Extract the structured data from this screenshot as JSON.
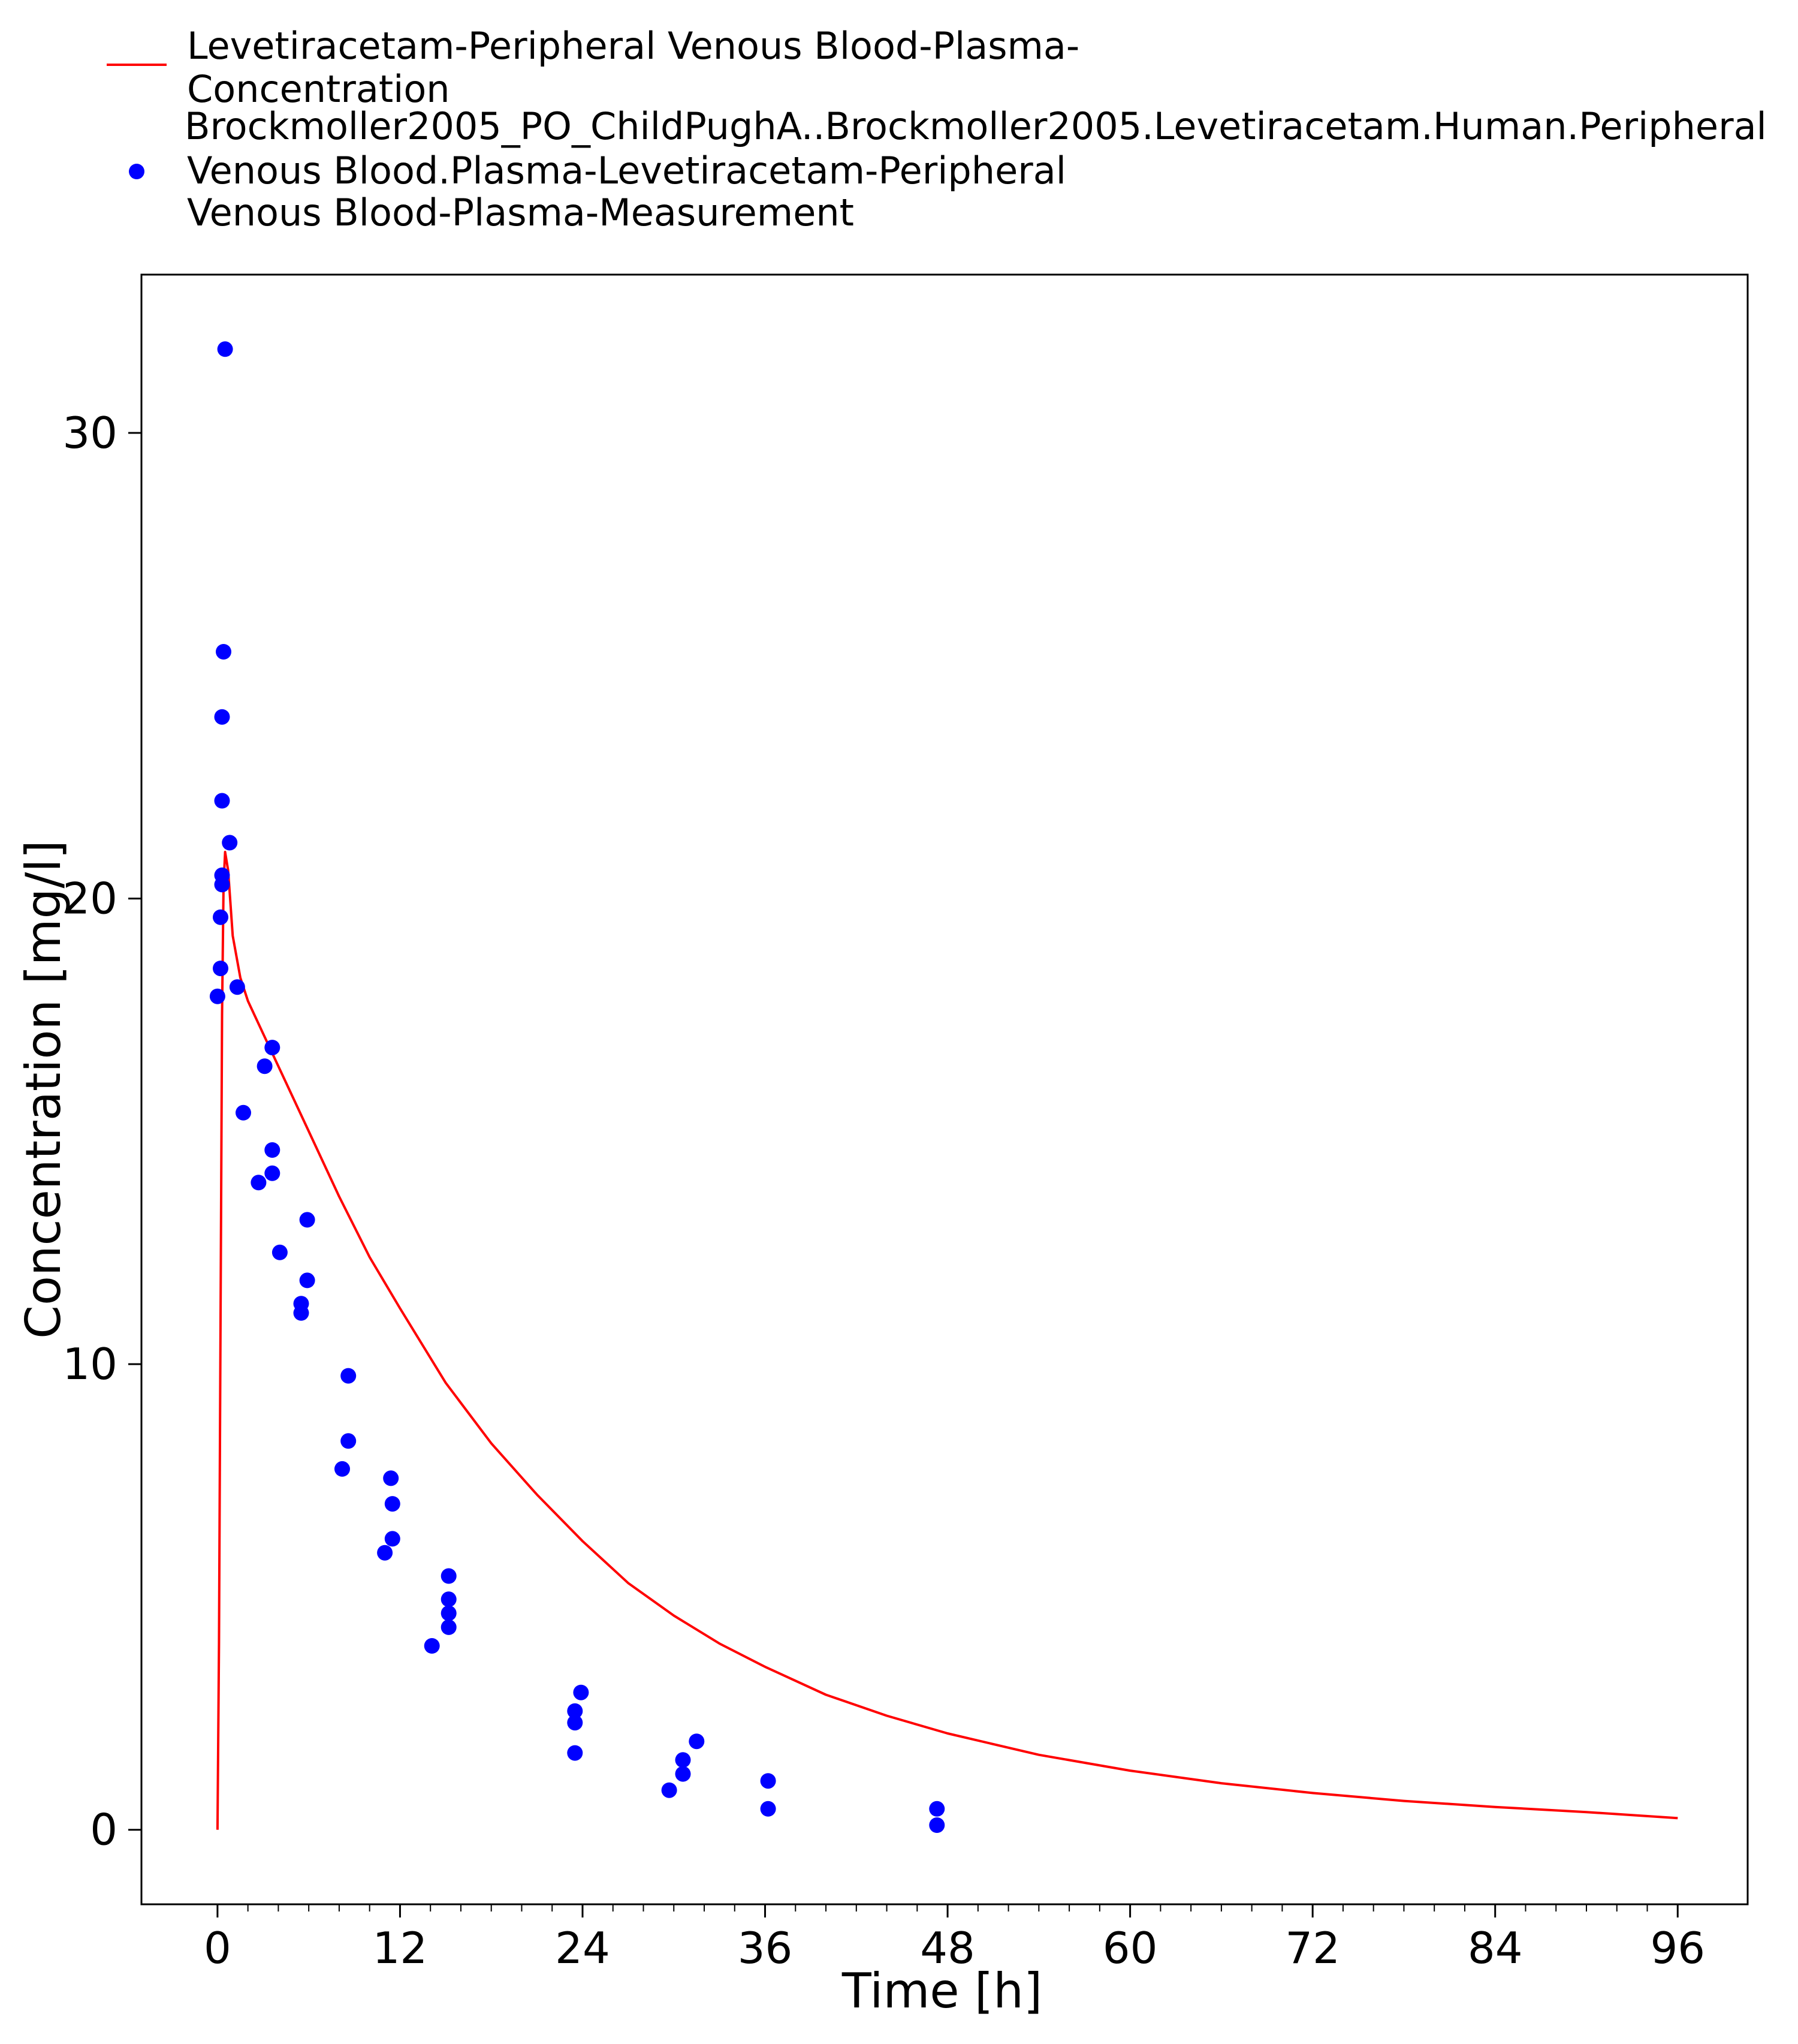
{
  "chart_data": {
    "type": "scatter",
    "xlabel": "Time [h]",
    "ylabel": "Concentration [mg/l]",
    "xlim": [
      -5,
      100.6
    ],
    "ylim": [
      -1.6,
      33.4
    ],
    "x_ticks": [
      0,
      12,
      24,
      36,
      48,
      60,
      72,
      84,
      96
    ],
    "x_minor_step": 2,
    "y_ticks": [
      0,
      10,
      20,
      30
    ],
    "grid": false,
    "legend_position": "top-left, outside plot",
    "legend": [
      {
        "series": "simulation",
        "lines": [
          "Levetiracetam-Peripheral Venous Blood-Plasma-",
          "Concentration",
          "Brockmoller2005_PO_ChildPughA..Brockmoller2005.Levetiracetam.Human.Peripheral"
        ]
      },
      {
        "series": "observed",
        "lines": [
          "Venous Blood.Plasma-Levetiracetam-Peripheral",
          "Venous Blood-Plasma-Measurement"
        ]
      }
    ],
    "series": [
      {
        "id": "simulation",
        "type": "line",
        "color": "#ff0000",
        "points": [
          [
            0,
            0
          ],
          [
            0.1,
            4
          ],
          [
            0.2,
            11
          ],
          [
            0.3,
            17.5
          ],
          [
            0.4,
            20.3
          ],
          [
            0.5,
            21.0
          ],
          [
            0.7,
            20.6
          ],
          [
            1.0,
            19.2
          ],
          [
            1.5,
            18.3
          ],
          [
            2,
            17.8
          ],
          [
            3,
            17.1
          ],
          [
            4,
            16.4
          ],
          [
            6,
            15.0
          ],
          [
            8,
            13.6
          ],
          [
            10,
            12.3
          ],
          [
            12,
            11.2
          ],
          [
            15,
            9.6
          ],
          [
            18,
            8.3
          ],
          [
            21,
            7.2
          ],
          [
            24,
            6.2
          ],
          [
            27,
            5.3
          ],
          [
            30,
            4.6
          ],
          [
            33,
            4.0
          ],
          [
            36,
            3.5
          ],
          [
            40,
            2.9
          ],
          [
            44,
            2.45
          ],
          [
            48,
            2.07
          ],
          [
            54,
            1.61
          ],
          [
            60,
            1.27
          ],
          [
            66,
            1.0
          ],
          [
            72,
            0.79
          ],
          [
            78,
            0.62
          ],
          [
            84,
            0.49
          ],
          [
            90,
            0.38
          ],
          [
            96,
            0.25
          ]
        ]
      },
      {
        "id": "observed",
        "type": "scatter",
        "color": "#0000ff",
        "points": [
          [
            0.5,
            31.8
          ],
          [
            0.4,
            25.3
          ],
          [
            0.3,
            23.9
          ],
          [
            0.3,
            22.1
          ],
          [
            0.8,
            21.2
          ],
          [
            0.3,
            20.5
          ],
          [
            0.3,
            20.3
          ],
          [
            0.2,
            19.6
          ],
          [
            0.2,
            18.5
          ],
          [
            0.0,
            17.9
          ],
          [
            1.3,
            18.1
          ],
          [
            3.6,
            16.8
          ],
          [
            3.1,
            16.4
          ],
          [
            1.7,
            15.4
          ],
          [
            3.6,
            14.6
          ],
          [
            3.6,
            14.1
          ],
          [
            2.7,
            13.9
          ],
          [
            5.9,
            13.1
          ],
          [
            4.1,
            12.4
          ],
          [
            5.9,
            11.8
          ],
          [
            5.5,
            11.3
          ],
          [
            5.5,
            11.1
          ],
          [
            8.6,
            9.75
          ],
          [
            8.6,
            8.35
          ],
          [
            8.2,
            7.75
          ],
          [
            11.4,
            7.55
          ],
          [
            11.5,
            7.0
          ],
          [
            11.5,
            6.25
          ],
          [
            11.0,
            5.95
          ],
          [
            15.2,
            5.45
          ],
          [
            15.2,
            4.95
          ],
          [
            15.2,
            4.65
          ],
          [
            15.2,
            4.35
          ],
          [
            14.1,
            3.95
          ],
          [
            23.9,
            2.95
          ],
          [
            23.5,
            2.55
          ],
          [
            23.5,
            2.3
          ],
          [
            23.5,
            1.65
          ],
          [
            31.5,
            1.9
          ],
          [
            30.6,
            1.5
          ],
          [
            30.6,
            1.2
          ],
          [
            29.7,
            0.85
          ],
          [
            36.2,
            1.05
          ],
          [
            36.2,
            0.45
          ],
          [
            47.3,
            0.45
          ],
          [
            47.3,
            0.1
          ]
        ]
      }
    ]
  }
}
